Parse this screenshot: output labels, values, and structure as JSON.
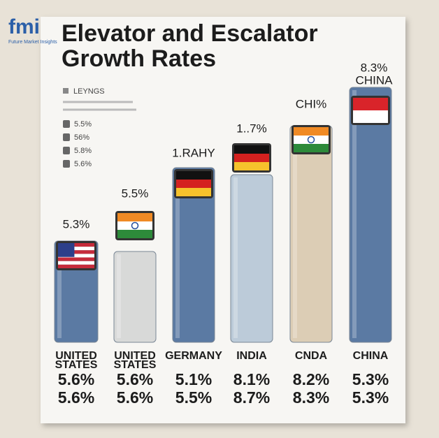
{
  "logo": {
    "mark": "fmi",
    "tagline": "Future Market Insights"
  },
  "title": [
    "Elevator and Escalator",
    "Growth Rates"
  ],
  "legend": {
    "heading": "LEYNGS",
    "items": [
      "5.5%",
      "56%",
      "5.8%",
      "5.6%"
    ]
  },
  "bars": [
    {
      "top_label": [
        "5.3%"
      ],
      "name": [
        "UNITED",
        "STATES"
      ],
      "row1": "5.6%",
      "row2": "5.6%"
    },
    {
      "top_label": [
        "5.5%"
      ],
      "name": [
        "UNITED",
        "STATES"
      ],
      "row1": "5.6%",
      "row2": "5.6%"
    },
    {
      "top_label": [
        "1.RAHY"
      ],
      "name": [
        "GERMANY"
      ],
      "row1": "5.1%",
      "row2": "5.5%"
    },
    {
      "top_label": [
        "1..7%"
      ],
      "name": [
        "INDIA"
      ],
      "row1": "8.1%",
      "row2": "8.7%"
    },
    {
      "top_label": [
        "CHI%"
      ],
      "name": [
        "CNDA"
      ],
      "row1": "8.2%",
      "row2": "8.3%"
    },
    {
      "top_label": [
        "8.3%",
        "CHINA"
      ],
      "name": [
        "CHINA"
      ],
      "row1": "5.3%",
      "row2": "5.3%"
    }
  ]
}
